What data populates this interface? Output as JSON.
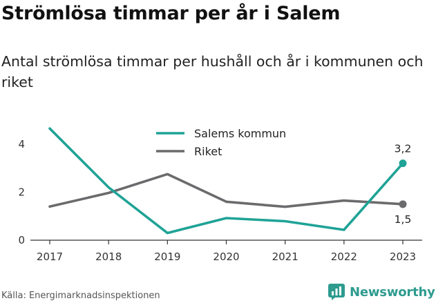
{
  "title": "Strömlösa timmar per år i Salem",
  "subtitle": "Antal strömlösa timmar per hushåll och år i kommunen och riket",
  "source": "Källa: Energimarknadsinspektionen",
  "brand": {
    "name": "Newsworthy",
    "icon": "newsworthy-logo-icon",
    "color": "#2e9b8f"
  },
  "chart_data": {
    "type": "line",
    "title": "Strömlösa timmar per år i Salem",
    "subtitle": "Antal strömlösa timmar per hushåll och år i kommunen och riket",
    "x": [
      "2017",
      "2018",
      "2019",
      "2020",
      "2021",
      "2022",
      "2023"
    ],
    "y_ticks": [
      "0",
      "2",
      "4"
    ],
    "ylim": [
      0,
      4.8
    ],
    "grid": false,
    "legend_position": "top-center",
    "series": [
      {
        "name": "Salems kommun",
        "color": "#1fa396",
        "values": [
          4.65,
          2.2,
          0.3,
          0.92,
          0.79,
          0.43,
          3.2
        ],
        "end_label": "3,2"
      },
      {
        "name": "Riket",
        "color": "#6b6b6e",
        "values": [
          1.4,
          1.97,
          2.75,
          1.6,
          1.39,
          1.65,
          1.5
        ],
        "end_label": "1,5"
      }
    ]
  }
}
